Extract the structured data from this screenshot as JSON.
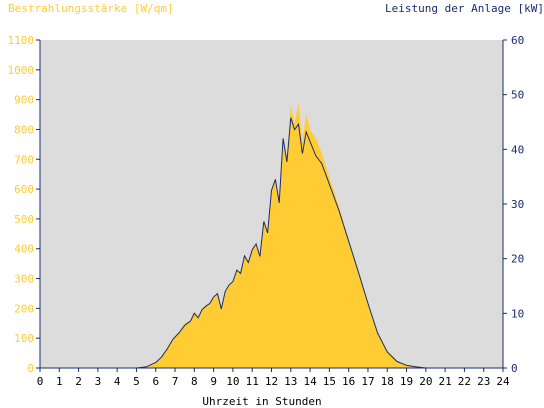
{
  "chart_data": {
    "type": "area",
    "title_left": "Bestrahlungsstärke [W/qm]",
    "title_right": "Leistung der Anlage [kW]",
    "xlabel": "Uhrzeit in Stunden",
    "x_ticks": [
      "0",
      "1",
      "2",
      "3",
      "4",
      "5",
      "6",
      "7",
      "8",
      "9",
      "10",
      "11",
      "12",
      "13",
      "14",
      "15",
      "16",
      "17",
      "18",
      "19",
      "20",
      "21",
      "22",
      "23",
      "24"
    ],
    "y_left_ticks": [
      "0",
      "100",
      "200",
      "300",
      "400",
      "500",
      "600",
      "700",
      "800",
      "900",
      "1000",
      "1100"
    ],
    "y_right_ticks": [
      "0",
      "10",
      "20",
      "30",
      "40",
      "50",
      "60"
    ],
    "xlim": [
      0,
      24
    ],
    "ylim_left": [
      0,
      1100
    ],
    "ylim_right": [
      0,
      60
    ],
    "grid": false,
    "series": [
      {
        "name": "Bestrahlungsstärke",
        "axis": "left",
        "style": "filled-area",
        "color": "#ffcc33",
        "x": [
          5.0,
          5.5,
          6.0,
          6.3,
          6.6,
          6.9,
          7.2,
          7.5,
          7.8,
          8.0,
          8.2,
          8.4,
          8.6,
          8.8,
          9.0,
          9.2,
          9.4,
          9.6,
          9.8,
          10.0,
          10.2,
          10.4,
          10.6,
          10.8,
          11.0,
          11.2,
          11.4,
          11.6,
          11.8,
          12.0,
          12.2,
          12.4,
          12.6,
          12.8,
          13.0,
          13.2,
          13.4,
          13.6,
          13.8,
          14.0,
          14.3,
          14.6,
          15.0,
          15.5,
          16.0,
          16.5,
          17.0,
          17.5,
          18.0,
          18.5,
          19.0,
          19.5,
          20.0,
          20.3,
          20.6,
          21.0
        ],
        "y": [
          0,
          5,
          20,
          40,
          70,
          100,
          120,
          150,
          160,
          190,
          170,
          200,
          210,
          220,
          240,
          250,
          200,
          260,
          280,
          290,
          330,
          320,
          380,
          360,
          400,
          420,
          380,
          500,
          460,
          600,
          640,
          560,
          780,
          700,
          880,
          820,
          890,
          760,
          850,
          800,
          770,
          720,
          640,
          540,
          430,
          330,
          220,
          120,
          60,
          25,
          10,
          5,
          2,
          0,
          0,
          0
        ]
      },
      {
        "name": "Leistung der Anlage",
        "axis": "right",
        "style": "line",
        "color": "#1a2b6d",
        "x": [
          5.0,
          5.5,
          6.0,
          6.3,
          6.6,
          6.9,
          7.2,
          7.5,
          7.8,
          8.0,
          8.2,
          8.4,
          8.6,
          8.8,
          9.0,
          9.2,
          9.4,
          9.6,
          9.8,
          10.0,
          10.2,
          10.4,
          10.6,
          10.8,
          11.0,
          11.2,
          11.4,
          11.6,
          11.8,
          12.0,
          12.2,
          12.4,
          12.6,
          12.8,
          13.0,
          13.2,
          13.4,
          13.6,
          13.8,
          14.0,
          14.3,
          14.6,
          15.0,
          15.5,
          16.0,
          16.5,
          17.0,
          17.5,
          18.0,
          18.5,
          19.0,
          19.5,
          20.0,
          20.3,
          20.6,
          21.0
        ],
        "y": [
          0,
          0.2,
          1,
          2,
          3.5,
          5.3,
          6.4,
          7.8,
          8.6,
          10,
          9.2,
          10.7,
          11.3,
          11.8,
          13,
          13.6,
          10.8,
          14,
          15.2,
          15.8,
          17.9,
          17.3,
          20.5,
          19.3,
          21.6,
          22.7,
          20.4,
          26.8,
          24.7,
          32.5,
          34.5,
          30.2,
          42,
          37.7,
          45.8,
          43.6,
          44.6,
          39.2,
          43.2,
          41.4,
          38.8,
          37.4,
          33.6,
          28.8,
          23.2,
          17.6,
          11.8,
          6.4,
          2.9,
          1.2,
          0.5,
          0.2,
          0,
          0,
          0,
          0
        ]
      }
    ]
  },
  "colors": {
    "plot_background": "#dcdcdc",
    "irradiance_fill": "#ffcc33",
    "power_line": "#1a2b6d",
    "left_axis_text": "#ffcc33",
    "right_axis_text": "#1a2b6d"
  }
}
